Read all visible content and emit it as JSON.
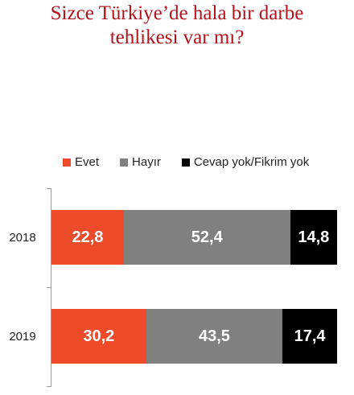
{
  "chart_data": {
    "type": "bar",
    "orientation": "horizontal",
    "stacked": true,
    "title_lines": [
      "Sizce Türkiye’de hala bir darbe",
      "tehlikesi var mı?"
    ],
    "categories": [
      "2018",
      "2019"
    ],
    "series": [
      {
        "name": "Evet",
        "color": "#ee4b2b",
        "values": [
          22.8,
          30.2
        ],
        "labels": [
          "22,8",
          "30,2"
        ]
      },
      {
        "name": "Hayır",
        "color": "#808080",
        "values": [
          52.4,
          43.5
        ],
        "labels": [
          "52,4",
          "43,5"
        ]
      },
      {
        "name": "Cevap yok/Fikrim yok",
        "color": "#000000",
        "values": [
          14.8,
          17.4
        ],
        "labels": [
          "14,8",
          "17,4"
        ]
      }
    ],
    "legend_position": "top",
    "grid": false
  }
}
